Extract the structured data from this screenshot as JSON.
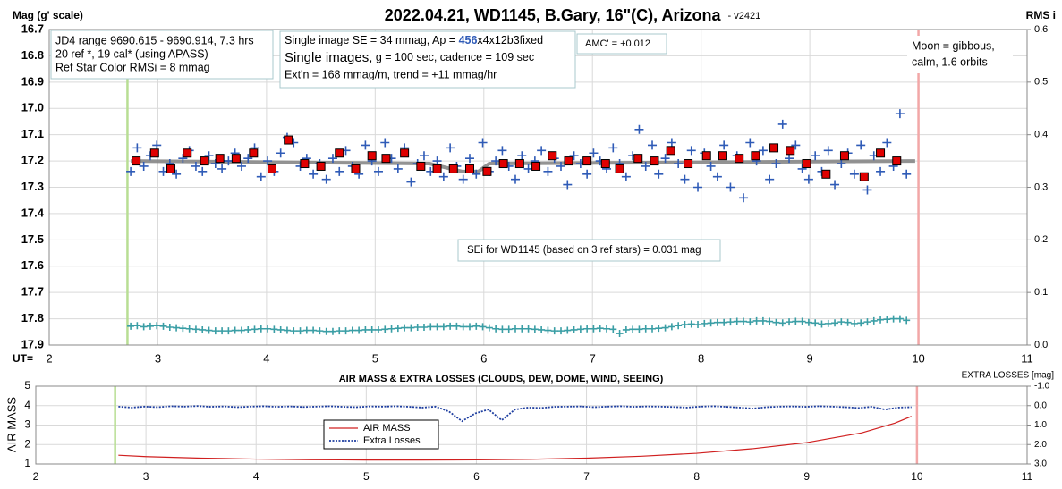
{
  "chart_data": [
    {
      "type": "scatter",
      "title": "2022.04.21, WD1145, B.Gary, 16\"(C), Arizona",
      "subtitle": "- v2421",
      "ylabel": "Mag (g' scale)",
      "y2label": "RMS i",
      "xlabel": "UT=",
      "xlim": [
        2,
        11
      ],
      "xticks": [
        2,
        3,
        4,
        5,
        6,
        7,
        8,
        9,
        10,
        11
      ],
      "ylim": [
        17.9,
        16.7
      ],
      "yticks": [
        16.7,
        16.8,
        16.9,
        {
          "value": 17,
          "label": "17.0"
        },
        17.1,
        17.2,
        17.3,
        17.4,
        17.5,
        17.6,
        17.7,
        17.8,
        17.9
      ],
      "y2lim": [
        0,
        0.6
      ],
      "y2ticks": [
        {
          "value": 0,
          "label": "0.0"
        },
        0.1,
        0.2,
        0.3,
        0.4,
        0.5,
        0.6
      ],
      "grid": true,
      "info_box": [
        "JD4 range 9690.615 - 9690.914, 7.3 hrs",
        "20 ref *, 19 cal* (using APASS)",
        "Ref Star Color RMSi = 8 mmag"
      ],
      "image_box": {
        "se": [
          "Single image SE = 34 mmag, Ap = ",
          "456",
          "x4x12b3fixed"
        ],
        "images": [
          "Single images,",
          " g = 100 sec, cadence = 109 sec"
        ],
        "extn": "Ext'n = 168 mmag/m, trend = +11 mmag/hr"
      },
      "amc": "AMC' = +0.012",
      "moon": [
        "Moon = gibbous,",
        "calm,  1.6 orbits"
      ],
      "sei": "SEi for WD1145 (based on 3 ref stars) = 0.031 mag",
      "markers": [
        {
          "x": 2.72,
          "color": "#b8de94"
        },
        {
          "x": 10,
          "color": "#f2a7a7"
        }
      ],
      "points": {
        "color": "#2f5bb7",
        "x": [
          2.75,
          2.81,
          2.87,
          2.93,
          2.99,
          3.05,
          3.11,
          3.17,
          3.23,
          3.29,
          3.35,
          3.41,
          3.47,
          3.53,
          3.59,
          3.65,
          3.71,
          3.77,
          3.83,
          3.89,
          3.95,
          4.01,
          4.07,
          4.13,
          4.19,
          4.25,
          4.31,
          4.37,
          4.43,
          4.49,
          4.55,
          4.61,
          4.67,
          4.73,
          4.79,
          4.85,
          4.91,
          4.97,
          5.03,
          5.09,
          5.15,
          5.21,
          5.27,
          5.33,
          5.39,
          5.45,
          5.51,
          5.57,
          5.63,
          5.69,
          5.75,
          5.81,
          5.87,
          5.93,
          5.99,
          6.05,
          6.11,
          6.17,
          6.23,
          6.29,
          6.35,
          6.41,
          6.47,
          6.53,
          6.59,
          6.65,
          6.71,
          6.77,
          6.83,
          6.89,
          6.95,
          7.01,
          7.07,
          7.13,
          7.19,
          7.25,
          7.31,
          7.37,
          7.43,
          7.49,
          7.55,
          7.61,
          7.67,
          7.73,
          7.79,
          7.85,
          7.91,
          7.97,
          8.03,
          8.09,
          8.15,
          8.21,
          8.27,
          8.33,
          8.39,
          8.45,
          8.51,
          8.57,
          8.63,
          8.69,
          8.75,
          8.81,
          8.87,
          8.93,
          8.99,
          9.05,
          9.11,
          9.17,
          9.23,
          9.29,
          9.35,
          9.41,
          9.47,
          9.53,
          9.59,
          9.65,
          9.71,
          9.77,
          9.83,
          9.89
        ],
        "values": [
          17.24,
          17.15,
          17.22,
          17.18,
          17.14,
          17.24,
          17.21,
          17.25,
          17.19,
          17.16,
          17.22,
          17.24,
          17.18,
          17.21,
          17.23,
          17.2,
          17.17,
          17.22,
          17.19,
          17.15,
          17.26,
          17.2,
          17.24,
          17.17,
          17.11,
          17.13,
          17.22,
          17.19,
          17.25,
          17.21,
          17.27,
          17.19,
          17.24,
          17.16,
          17.22,
          17.25,
          17.14,
          17.2,
          17.24,
          17.13,
          17.19,
          17.23,
          17.15,
          17.28,
          17.21,
          17.18,
          17.24,
          17.2,
          17.26,
          17.15,
          17.22,
          17.27,
          17.19,
          17.25,
          17.13,
          17.24,
          17.2,
          17.16,
          17.22,
          17.27,
          17.18,
          17.23,
          17.2,
          17.16,
          17.24,
          17.19,
          17.22,
          17.29,
          17.18,
          17.21,
          17.25,
          17.17,
          17.2,
          17.23,
          17.15,
          17.21,
          17.26,
          17.18,
          17.08,
          17.22,
          17.14,
          17.25,
          17.19,
          17.13,
          17.21,
          17.27,
          17.16,
          17.3,
          17.17,
          17.22,
          17.26,
          17.14,
          17.3,
          17.18,
          17.34,
          17.13,
          17.2,
          17.16,
          17.27,
          17.21,
          17.06,
          17.19,
          17.14,
          17.23,
          17.27,
          17.18,
          17.24,
          17.16,
          17.29,
          17.21,
          17.17,
          17.25,
          17.14,
          17.31,
          17.18,
          17.24,
          17.13,
          17.22,
          17.02,
          17.25
        ]
      },
      "means": {
        "color": "#e00000",
        "x": [
          2.8,
          2.97,
          3.12,
          3.27,
          3.43,
          3.57,
          3.72,
          3.88,
          4.05,
          4.2,
          4.35,
          4.5,
          4.67,
          4.82,
          4.97,
          5.1,
          5.27,
          5.42,
          5.57,
          5.72,
          5.87,
          6.03,
          6.18,
          6.33,
          6.48,
          6.63,
          6.78,
          6.95,
          7.12,
          7.25,
          7.42,
          7.57,
          7.72,
          7.88,
          8.05,
          8.2,
          8.35,
          8.5,
          8.67,
          8.82,
          8.97,
          9.15,
          9.32,
          9.5,
          9.65,
          9.8
        ],
        "values": [
          17.2,
          17.17,
          17.23,
          17.17,
          17.2,
          17.19,
          17.19,
          17.17,
          17.23,
          17.12,
          17.21,
          17.22,
          17.17,
          17.23,
          17.18,
          17.19,
          17.17,
          17.22,
          17.23,
          17.23,
          17.23,
          17.24,
          17.21,
          17.21,
          17.22,
          17.18,
          17.2,
          17.2,
          17.21,
          17.23,
          17.19,
          17.2,
          17.16,
          17.21,
          17.18,
          17.18,
          17.19,
          17.18,
          17.15,
          17.16,
          17.21,
          17.25,
          17.18,
          17.26,
          17.17,
          17.2
        ]
      },
      "trend": {
        "color": "#808080",
        "x": [
          2.75,
          5.5,
          5.8,
          5.95,
          6.05,
          9.97
        ],
        "values": [
          17.2,
          17.21,
          17.24,
          17.24,
          17.21,
          17.2
        ]
      },
      "rms": {
        "color": "#3a9ea5",
        "axis": "y2",
        "x": [
          2.75,
          2.81,
          2.87,
          2.93,
          2.99,
          3.05,
          3.11,
          3.17,
          3.23,
          3.29,
          3.35,
          3.41,
          3.47,
          3.53,
          3.59,
          3.65,
          3.71,
          3.77,
          3.83,
          3.89,
          3.95,
          4.01,
          4.07,
          4.13,
          4.19,
          4.25,
          4.31,
          4.37,
          4.43,
          4.49,
          4.55,
          4.61,
          4.67,
          4.73,
          4.79,
          4.85,
          4.91,
          4.97,
          5.03,
          5.09,
          5.15,
          5.21,
          5.27,
          5.33,
          5.39,
          5.45,
          5.51,
          5.57,
          5.63,
          5.69,
          5.75,
          5.81,
          5.87,
          5.93,
          5.99,
          6.05,
          6.11,
          6.17,
          6.23,
          6.29,
          6.35,
          6.41,
          6.47,
          6.53,
          6.59,
          6.65,
          6.71,
          6.77,
          6.83,
          6.89,
          6.95,
          7.01,
          7.07,
          7.13,
          7.19,
          7.25,
          7.31,
          7.37,
          7.43,
          7.49,
          7.55,
          7.61,
          7.67,
          7.73,
          7.79,
          7.85,
          7.91,
          7.97,
          8.03,
          8.09,
          8.15,
          8.21,
          8.27,
          8.33,
          8.39,
          8.45,
          8.51,
          8.57,
          8.63,
          8.69,
          8.75,
          8.81,
          8.87,
          8.93,
          8.99,
          9.05,
          9.11,
          9.17,
          9.23,
          9.29,
          9.35,
          9.41,
          9.47,
          9.53,
          9.59,
          9.65,
          9.71,
          9.77,
          9.83,
          9.89
        ],
        "values": [
          0.036,
          0.037,
          0.035,
          0.036,
          0.037,
          0.036,
          0.034,
          0.033,
          0.032,
          0.031,
          0.03,
          0.029,
          0.028,
          0.027,
          0.027,
          0.027,
          0.028,
          0.028,
          0.029,
          0.03,
          0.031,
          0.031,
          0.03,
          0.029,
          0.028,
          0.027,
          0.027,
          0.028,
          0.028,
          0.027,
          0.026,
          0.026,
          0.027,
          0.027,
          0.028,
          0.028,
          0.029,
          0.029,
          0.029,
          0.03,
          0.031,
          0.032,
          0.033,
          0.033,
          0.034,
          0.034,
          0.035,
          0.035,
          0.035,
          0.036,
          0.036,
          0.035,
          0.035,
          0.036,
          0.035,
          0.033,
          0.031,
          0.03,
          0.03,
          0.031,
          0.031,
          0.031,
          0.03,
          0.029,
          0.028,
          0.027,
          0.027,
          0.028,
          0.029,
          0.03,
          0.031,
          0.031,
          0.032,
          0.031,
          0.03,
          0.022,
          0.029,
          0.03,
          0.03,
          0.031,
          0.031,
          0.032,
          0.033,
          0.035,
          0.037,
          0.039,
          0.04,
          0.039,
          0.041,
          0.042,
          0.043,
          0.043,
          0.044,
          0.045,
          0.045,
          0.044,
          0.046,
          0.046,
          0.045,
          0.043,
          0.042,
          0.044,
          0.045,
          0.045,
          0.043,
          0.042,
          0.04,
          0.041,
          0.042,
          0.044,
          0.043,
          0.041,
          0.042,
          0.044,
          0.046,
          0.048,
          0.049,
          0.05,
          0.05,
          0.047
        ]
      }
    },
    {
      "type": "line",
      "title": "AIR MASS & EXTRA LOSSES (CLOUDS, DEW, DOME, WIND, SEEING)",
      "ylabel": "AIR MASS",
      "y2label": "EXTRA LOSSES [mag]",
      "xlim": [
        2,
        11
      ],
      "xticks": [
        2,
        3,
        4,
        5,
        6,
        7,
        8,
        9,
        10,
        11
      ],
      "ylim": [
        1,
        5
      ],
      "yticks": [
        1,
        2,
        3,
        4,
        5
      ],
      "y2lim": [
        3,
        -1
      ],
      "y2ticks": [
        {
          "value": -1,
          "label": "-1.0"
        },
        {
          "value": 0,
          "label": "0.0"
        },
        {
          "value": 1,
          "label": "1.0"
        },
        {
          "value": 2,
          "label": "2.0"
        },
        {
          "value": 3,
          "label": "3.0"
        }
      ],
      "grid": true,
      "markers": [
        {
          "x": 2.72,
          "color": "#b8de94"
        },
        {
          "x": 10,
          "color": "#f2a7a7"
        }
      ],
      "series": [
        {
          "name": "AIR MASS",
          "color": "#d02020",
          "x": [
            2.75,
            3,
            3.5,
            4,
            4.5,
            5,
            5.5,
            6,
            6.5,
            7,
            7.5,
            8,
            8.5,
            9,
            9.5,
            9.8,
            9.95
          ],
          "values": [
            1.45,
            1.38,
            1.3,
            1.25,
            1.22,
            1.2,
            1.2,
            1.21,
            1.24,
            1.3,
            1.4,
            1.55,
            1.78,
            2.1,
            2.6,
            3.1,
            3.45
          ]
        },
        {
          "name": "Extra Losses",
          "color": "#1f3fa0",
          "axis": "y2",
          "x": [
            2.75,
            2.87,
            2.99,
            3.11,
            3.23,
            3.35,
            3.47,
            3.59,
            3.71,
            3.83,
            3.95,
            4.07,
            4.19,
            4.31,
            4.43,
            4.55,
            4.67,
            4.79,
            4.91,
            5.03,
            5.15,
            5.27,
            5.39,
            5.51,
            5.63,
            5.75,
            5.87,
            5.99,
            6.11,
            6.23,
            6.35,
            6.47,
            6.59,
            6.71,
            6.83,
            6.95,
            7.07,
            7.19,
            7.31,
            7.43,
            7.55,
            7.67,
            7.79,
            7.91,
            8.03,
            8.15,
            8.27,
            8.39,
            8.51,
            8.63,
            8.75,
            8.87,
            8.99,
            9.11,
            9.23,
            9.35,
            9.47,
            9.59,
            9.71,
            9.83,
            9.95
          ],
          "values": [
            0.05,
            0.1,
            0.05,
            0.08,
            0.03,
            0.05,
            0.02,
            0.06,
            0.04,
            0.08,
            0.05,
            0.03,
            0.06,
            0.04,
            0.07,
            0.05,
            0.03,
            0.06,
            0.08,
            0.04,
            0.05,
            0.03,
            0.06,
            0.1,
            0.05,
            0.3,
            0.8,
            0.4,
            0.2,
            0.75,
            0.2,
            0.1,
            0.12,
            0.06,
            0.05,
            0.04,
            0.08,
            0.05,
            0.03,
            0.06,
            0.04,
            0.05,
            0.07,
            0.1,
            0.05,
            0.03,
            0.06,
            0.1,
            0.15,
            0.08,
            0.05,
            0.04,
            0.06,
            0.03,
            0.05,
            0.08,
            0.12,
            0.06,
            0.2,
            0.1,
            0.08
          ]
        }
      ]
    }
  ]
}
